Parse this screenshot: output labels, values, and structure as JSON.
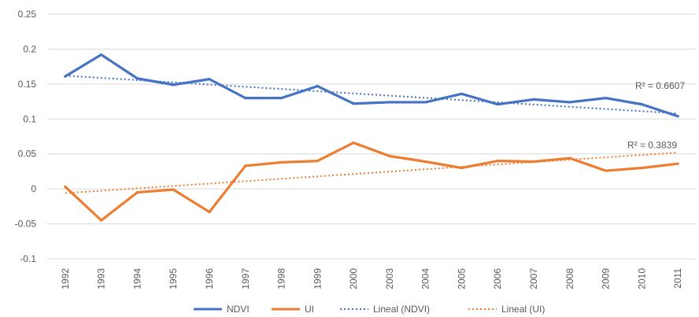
{
  "chart_data": {
    "type": "line",
    "title": "",
    "xlabel": "",
    "ylabel": "",
    "ylim": [
      -0.1,
      0.25
    ],
    "yticks": [
      "0.25",
      "0.2",
      "0.15",
      "0.1",
      "0.05",
      "0",
      "-0.05",
      "-0.1"
    ],
    "grid": true,
    "legend_position": "bottom",
    "categories": [
      "1992",
      "1993",
      "1994",
      "1995",
      "1996",
      "1997",
      "1998",
      "1999",
      "2000",
      "2003",
      "2004",
      "2005",
      "2006",
      "2007",
      "2008",
      "2009",
      "2010",
      "2011"
    ],
    "series": [
      {
        "name": "NDVI",
        "color": "#4472C4",
        "values": [
          0.161,
          0.192,
          0.158,
          0.149,
          0.157,
          0.13,
          0.13,
          0.147,
          0.122,
          0.124,
          0.124,
          0.136,
          0.121,
          0.128,
          0.124,
          0.13,
          0.121,
          0.104
        ]
      },
      {
        "name": "UI",
        "color": "#ED7D31",
        "values": [
          0.003,
          -0.045,
          -0.005,
          -0.001,
          -0.033,
          0.033,
          0.038,
          0.04,
          0.066,
          0.047,
          0.039,
          0.03,
          0.04,
          0.039,
          0.044,
          0.026,
          0.03,
          0.036
        ]
      }
    ],
    "trendlines": [
      {
        "name": "Lineal (NDVI)",
        "color": "#4472C4",
        "start": 0.162,
        "end": 0.108,
        "r2_label": "R² = 0.6607"
      },
      {
        "name": "Lineal (UI)",
        "color": "#ED7D31",
        "start": -0.006,
        "end": 0.052,
        "r2_label": "R² = 0.3839"
      }
    ]
  }
}
